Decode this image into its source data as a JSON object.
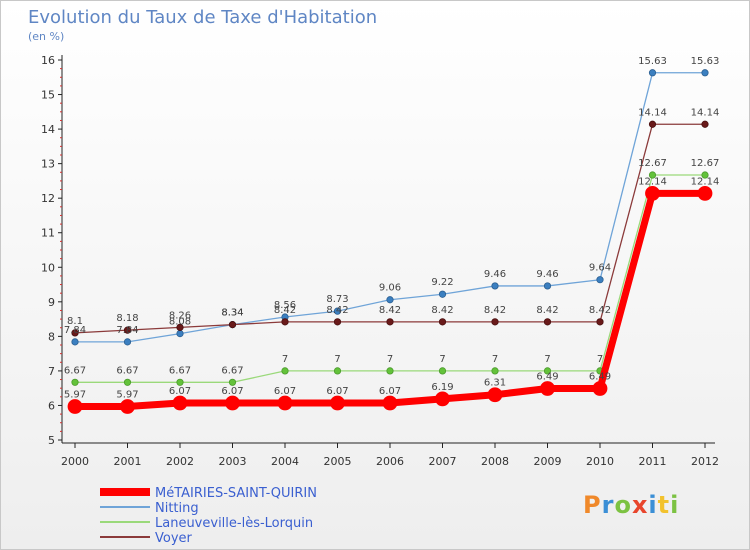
{
  "title": "Evolution du Taux de Taxe d'Habitation",
  "subtitle": "(en %)",
  "logo": {
    "text": "Proxiti",
    "colors": [
      "#f0892a",
      "#3b8fd6",
      "#7cc242",
      "#e8452c",
      "#3b8fd6",
      "#f2c22e",
      "#7cc242"
    ]
  },
  "chart_data": {
    "type": "line",
    "title": "Evolution du Taux de Taxe d'Habitation",
    "ylabel": "(en %)",
    "xlabel": "",
    "x": [
      "2000",
      "2001",
      "2002",
      "2003",
      "2004",
      "2005",
      "2006",
      "2007",
      "2008",
      "2009",
      "2010",
      "2011",
      "2012"
    ],
    "ylim": [
      5,
      16
    ],
    "yticks": [
      5,
      6,
      7,
      8,
      9,
      10,
      11,
      12,
      13,
      14,
      15,
      16
    ],
    "grid": false,
    "legend_position": "bottom-left",
    "series": [
      {
        "name": "MéTAIRIES-SAINT-QUIRIN",
        "color": "#ff0000",
        "values": [
          5.97,
          5.97,
          6.07,
          6.07,
          6.07,
          6.07,
          6.07,
          6.19,
          6.31,
          6.49,
          6.49,
          12.14,
          12.14
        ],
        "labels": [
          "5.97",
          "5.97",
          "6.07",
          "6.07",
          "6.07",
          "6.07",
          "6.07",
          "6.19",
          "6.31",
          "6.49",
          "6.49",
          "12.14",
          "12.14"
        ]
      },
      {
        "name": "Nitting",
        "color": "#6fa4d8",
        "values": [
          7.84,
          7.84,
          8.08,
          8.34,
          8.56,
          8.73,
          9.06,
          9.22,
          9.46,
          9.46,
          9.64,
          15.63,
          15.63
        ],
        "labels": [
          "7.84",
          "7.84",
          "8.08",
          "8.34",
          "8.56",
          "8.73",
          "9.06",
          "9.22",
          "9.46",
          "9.46",
          "9.64",
          "15.63",
          "15.63"
        ]
      },
      {
        "name": "Laneuveville-lès-Lorquin",
        "color": "#9ad97a",
        "values": [
          6.67,
          6.67,
          6.67,
          6.67,
          7,
          7,
          7,
          7,
          7,
          7,
          7,
          12.67,
          12.67
        ],
        "labels": [
          "6.67",
          "6.67",
          "6.67",
          "6.67",
          "7",
          "7",
          "7",
          "7",
          "7",
          "7",
          "7",
          "12.67",
          "12.67"
        ]
      },
      {
        "name": "Voyer",
        "color": "#8b3a3a",
        "values": [
          8.1,
          8.18,
          8.26,
          8.34,
          8.42,
          8.42,
          8.42,
          8.42,
          8.42,
          8.42,
          8.42,
          14.14,
          14.14
        ],
        "labels": [
          "8.1",
          "8.18",
          "8.26",
          "8.34",
          "8.42",
          "8.42",
          "8.42",
          "8.42",
          "8.42",
          "8.42",
          "8.42",
          "14.14",
          "14.14"
        ]
      }
    ]
  }
}
